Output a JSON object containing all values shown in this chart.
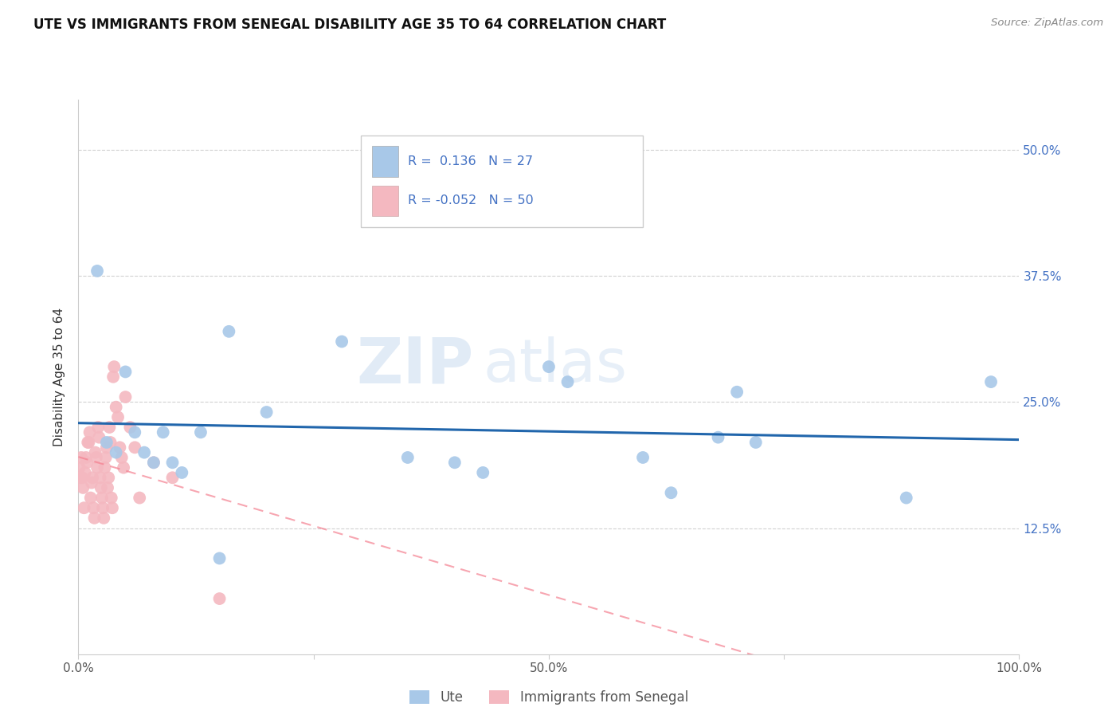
{
  "title": "UTE VS IMMIGRANTS FROM SENEGAL DISABILITY AGE 35 TO 64 CORRELATION CHART",
  "source": "Source: ZipAtlas.com",
  "ylabel": "Disability Age 35 to 64",
  "xlim": [
    0.0,
    1.0
  ],
  "ylim": [
    0.0,
    0.55
  ],
  "xticks": [
    0.0,
    0.25,
    0.5,
    0.75,
    1.0
  ],
  "xticklabels": [
    "0.0%",
    "",
    "50.0%",
    "",
    "100.0%"
  ],
  "yticks": [
    0.125,
    0.25,
    0.375,
    0.5
  ],
  "yticklabels": [
    "12.5%",
    "25.0%",
    "37.5%",
    "50.0%"
  ],
  "tick_color": "#4472c4",
  "ute_color": "#a8c8e8",
  "senegal_color": "#f4b8c0",
  "trendline_ute_color": "#2166ac",
  "trendline_senegal_color": "#f48090",
  "legend_R_ute": "0.136",
  "legend_N_ute": "27",
  "legend_R_senegal": "-0.052",
  "legend_N_senegal": "50",
  "legend_label_ute": "Ute",
  "legend_label_senegal": "Immigrants from Senegal",
  "watermark": "ZIPAtlas",
  "ute_x": [
    0.02,
    0.03,
    0.04,
    0.05,
    0.06,
    0.07,
    0.08,
    0.09,
    0.1,
    0.11,
    0.13,
    0.15,
    0.16,
    0.2,
    0.28,
    0.35,
    0.4,
    0.43,
    0.5,
    0.52,
    0.6,
    0.63,
    0.68,
    0.7,
    0.72,
    0.88,
    0.97
  ],
  "ute_y": [
    0.38,
    0.21,
    0.2,
    0.28,
    0.22,
    0.2,
    0.19,
    0.22,
    0.19,
    0.18,
    0.22,
    0.095,
    0.32,
    0.24,
    0.31,
    0.195,
    0.19,
    0.18,
    0.285,
    0.27,
    0.195,
    0.16,
    0.215,
    0.26,
    0.21,
    0.155,
    0.27
  ],
  "senegal_x": [
    0.001,
    0.002,
    0.003,
    0.004,
    0.005,
    0.006,
    0.007,
    0.008,
    0.009,
    0.01,
    0.011,
    0.012,
    0.013,
    0.014,
    0.015,
    0.016,
    0.017,
    0.018,
    0.019,
    0.02,
    0.021,
    0.022,
    0.023,
    0.024,
    0.025,
    0.026,
    0.027,
    0.028,
    0.029,
    0.03,
    0.031,
    0.032,
    0.033,
    0.034,
    0.035,
    0.036,
    0.037,
    0.038,
    0.04,
    0.042,
    0.044,
    0.046,
    0.048,
    0.05,
    0.055,
    0.06,
    0.065,
    0.08,
    0.1,
    0.15
  ],
  "senegal_y": [
    0.185,
    0.175,
    0.195,
    0.175,
    0.165,
    0.145,
    0.18,
    0.195,
    0.19,
    0.21,
    0.21,
    0.22,
    0.155,
    0.17,
    0.175,
    0.145,
    0.135,
    0.2,
    0.195,
    0.185,
    0.225,
    0.215,
    0.175,
    0.165,
    0.155,
    0.145,
    0.135,
    0.185,
    0.195,
    0.205,
    0.165,
    0.175,
    0.225,
    0.21,
    0.155,
    0.145,
    0.275,
    0.285,
    0.245,
    0.235,
    0.205,
    0.195,
    0.185,
    0.255,
    0.225,
    0.205,
    0.155,
    0.19,
    0.175,
    0.055
  ]
}
